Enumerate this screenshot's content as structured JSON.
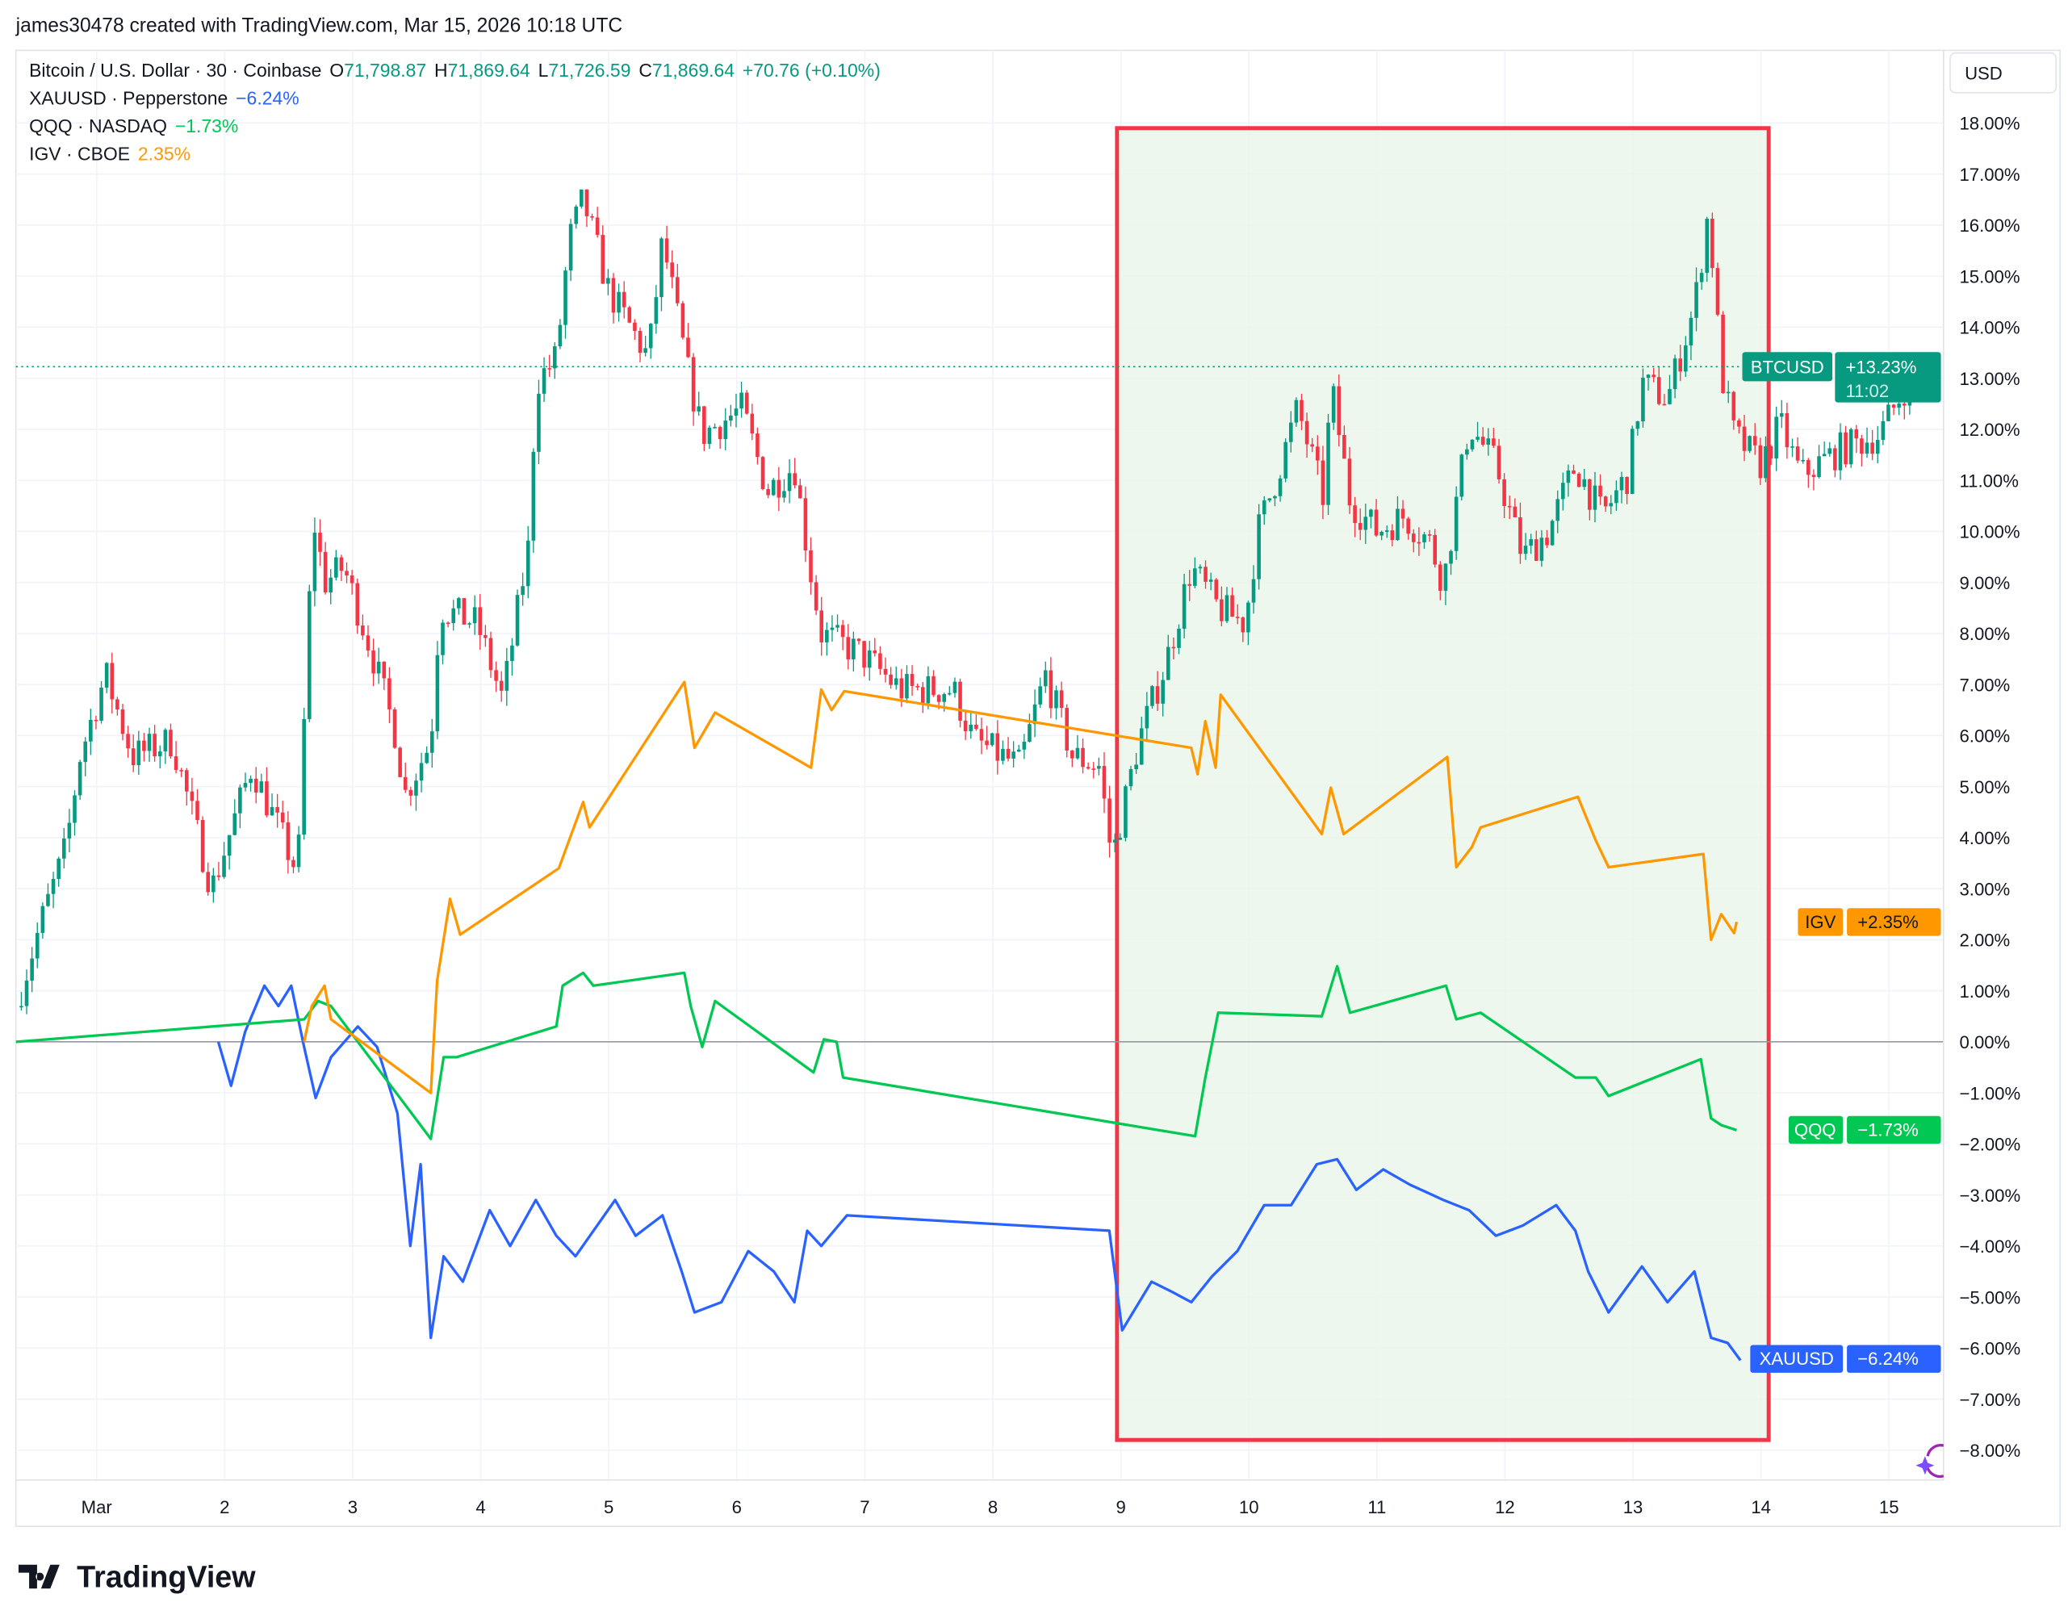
{
  "header": {
    "credit": "james30478 created with TradingView.com, Mar 15, 2026 10:18 UTC"
  },
  "legend": {
    "main": {
      "name": "Bitcoin / U.S. Dollar · 30 · Coinbase",
      "o_label": "O",
      "o": "71,798.87",
      "h_label": "H",
      "h": "71,869.64",
      "l_label": "L",
      "l": "71,726.59",
      "c_label": "C",
      "c": "71,869.64",
      "change": "+70.76 (+0.10%)"
    },
    "xauusd": {
      "name": "XAUUSD · Pepperstone",
      "change": "−6.24%"
    },
    "qqq": {
      "name": "QQQ · NASDAQ",
      "change": "−1.73%"
    },
    "igv": {
      "name": "IGV · CBOE",
      "change": "2.35%"
    }
  },
  "currency": "USD",
  "badges": {
    "btc": {
      "label": "BTCUSD",
      "value": "+13.23%",
      "countdown": "11:02"
    },
    "igv": {
      "label": "IGV",
      "value": "+2.35%"
    },
    "qqq": {
      "label": "QQQ",
      "value": "−1.73%"
    },
    "xau": {
      "label": "XAUUSD",
      "value": "−6.24%"
    }
  },
  "brand": {
    "logo_text": "TradingView"
  },
  "colors": {
    "up": "#089981",
    "down": "#f23645",
    "xauusd": "#2962ff",
    "qqq": "#00c853",
    "igv": "#ff9800",
    "highlight_border": "#f23645",
    "highlight_fill": "#e8f5e9"
  },
  "chart_data": {
    "type": "line",
    "ylim": [
      -8.8,
      18.8
    ],
    "y_ticks": [
      "18.00%",
      "17.00%",
      "16.00%",
      "15.00%",
      "14.00%",
      "13.00%",
      "12.00%",
      "11.00%",
      "10.00%",
      "9.00%",
      "8.00%",
      "7.00%",
      "6.00%",
      "5.00%",
      "4.00%",
      "3.00%",
      "2.00%",
      "1.00%",
      "0.00%",
      "−1.00%",
      "−2.00%",
      "−3.00%",
      "−4.00%",
      "−5.00%",
      "−6.00%",
      "−7.00%",
      "−8.00%"
    ],
    "x_ticks": [
      {
        "day": 1,
        "label": "Mar"
      },
      {
        "day": 2,
        "label": "2"
      },
      {
        "day": 3,
        "label": "3"
      },
      {
        "day": 4,
        "label": "4"
      },
      {
        "day": 5,
        "label": "5"
      },
      {
        "day": 6,
        "label": "6"
      },
      {
        "day": 7,
        "label": "7"
      },
      {
        "day": 8,
        "label": "8"
      },
      {
        "day": 9,
        "label": "9"
      },
      {
        "day": 10,
        "label": "10"
      },
      {
        "day": 11,
        "label": "11"
      },
      {
        "day": 12,
        "label": "12"
      },
      {
        "day": 13,
        "label": "13"
      },
      {
        "day": 14,
        "label": "14"
      },
      {
        "day": 15,
        "label": "15"
      }
    ],
    "grid": true,
    "highlight_box": {
      "x": [
        8.97,
        14.06
      ],
      "y": [
        -7.8,
        17.9
      ]
    },
    "series": [
      {
        "name": "BTCUSD",
        "style": "candles",
        "last": 13.23,
        "x": [
          0.37,
          0.56,
          0.76,
          0.87,
          1.07,
          1.28,
          1.59,
          1.9,
          2.21,
          2.57,
          2.65,
          2.69,
          2.78,
          2.93,
          3.14,
          3.35,
          3.4,
          3.61,
          3.68,
          3.97,
          4.17,
          4.38,
          4.43,
          4.59,
          4.69,
          4.8,
          5.0,
          5.31,
          5.42,
          5.62,
          5.73,
          6.04,
          6.24,
          6.45,
          6.57,
          6.66,
          6.97,
          7.28,
          7.69,
          7.85,
          8.21,
          8.41,
          8.62,
          8.83,
          8.93,
          9.14,
          9.35,
          9.55,
          9.76,
          9.97,
          10.07,
          10.22,
          10.38,
          10.59,
          10.64,
          10.79,
          11.0,
          11.21,
          11.41,
          11.52,
          11.72,
          11.93,
          12.14,
          12.34,
          12.55,
          12.76,
          12.96,
          13.07,
          13.27,
          13.48,
          13.59,
          13.69,
          13.79,
          14.0,
          14.15,
          14.31,
          14.62,
          14.93,
          15.14,
          15.34,
          15.39
        ],
        "y": [
          0.7,
          2.3,
          3.8,
          5.6,
          7.2,
          5.6,
          5.9,
          3.0,
          5.4,
          3.3,
          8.0,
          10.3,
          9.0,
          9.3,
          7.7,
          5.9,
          4.8,
          5.9,
          8.5,
          8.2,
          6.7,
          9.8,
          12.9,
          13.4,
          15.7,
          16.5,
          14.7,
          13.4,
          15.7,
          13.1,
          11.9,
          12.4,
          10.8,
          11.3,
          9.3,
          8.0,
          7.6,
          6.9,
          6.9,
          5.9,
          5.4,
          7.2,
          5.6,
          5.4,
          3.6,
          5.9,
          7.4,
          9.3,
          8.5,
          8.2,
          10.0,
          11.1,
          12.4,
          10.6,
          12.9,
          10.6,
          10.0,
          10.3,
          9.8,
          9.0,
          12.1,
          11.3,
          9.5,
          10.0,
          11.3,
          10.3,
          11.1,
          12.9,
          12.6,
          14.4,
          16.3,
          13.1,
          11.9,
          11.3,
          12.1,
          11.1,
          11.6,
          11.9,
          12.9,
          13.0,
          13.23
        ]
      },
      {
        "name": "XAUUSD",
        "style": "line",
        "last": -6.24,
        "x": [
          1.95,
          2.05,
          2.16,
          2.31,
          2.42,
          2.52,
          2.62,
          2.71,
          2.83,
          3.04,
          3.19,
          3.35,
          3.45,
          3.53,
          3.61,
          3.71,
          3.86,
          4.07,
          4.23,
          4.43,
          4.59,
          4.74,
          5.05,
          5.21,
          5.42,
          5.57,
          5.67,
          5.88,
          6.09,
          6.29,
          6.45,
          6.55,
          6.66,
          6.86,
          8.91,
          9.01,
          9.24,
          9.4,
          9.55,
          9.71,
          9.91,
          10.12,
          10.33,
          10.53,
          10.69,
          10.84,
          11.05,
          11.26,
          11.52,
          11.72,
          11.93,
          12.14,
          12.4,
          12.55,
          12.65,
          12.81,
          13.07,
          13.27,
          13.48,
          13.61,
          13.74,
          13.84
        ],
        "y": [
          0,
          -0.86,
          0.2,
          1.1,
          0.7,
          1.1,
          -0.1,
          -1.1,
          -0.3,
          0.3,
          -0.1,
          -1.4,
          -4.0,
          -2.4,
          -5.8,
          -4.2,
          -4.7,
          -3.3,
          -4.0,
          -3.1,
          -3.8,
          -4.2,
          -3.1,
          -3.8,
          -3.4,
          -4.5,
          -5.3,
          -5.1,
          -4.1,
          -4.5,
          -5.1,
          -3.7,
          -4.0,
          -3.4,
          -3.7,
          -5.65,
          -4.7,
          -4.9,
          -5.1,
          -4.6,
          -4.1,
          -3.2,
          -3.2,
          -2.4,
          -2.3,
          -2.9,
          -2.5,
          -2.8,
          -3.1,
          -3.3,
          -3.8,
          -3.6,
          -3.2,
          -3.7,
          -4.5,
          -5.3,
          -4.4,
          -5.1,
          -4.5,
          -5.8,
          -5.9,
          -6.24
        ]
      },
      {
        "name": "QQQ",
        "style": "line",
        "last": -1.73,
        "x": [
          0.37,
          2.62,
          2.73,
          2.83,
          3.61,
          3.71,
          3.81,
          4.59,
          4.64,
          4.8,
          4.88,
          5.59,
          5.64,
          5.73,
          5.83,
          6.6,
          6.68,
          6.78,
          6.83,
          9.58,
          9.66,
          9.76,
          10.57,
          10.69,
          10.79,
          11.54,
          11.62,
          11.81,
          12.55,
          12.71,
          12.81,
          13.53,
          13.61,
          13.69,
          13.81
        ],
        "y": [
          0,
          0.44,
          0.8,
          0.7,
          -1.9,
          -0.3,
          -0.3,
          0.3,
          1.1,
          1.35,
          1.1,
          1.35,
          0.7,
          -0.1,
          0.8,
          -0.6,
          0.05,
          0,
          -0.7,
          -1.85,
          -0.7,
          0.57,
          0.5,
          1.48,
          0.57,
          1.1,
          0.44,
          0.57,
          -0.7,
          -0.7,
          -1.06,
          -0.34,
          -1.5,
          -1.63,
          -1.73
        ]
      },
      {
        "name": "IGV",
        "style": "line",
        "last": 2.35,
        "x": [
          2.62,
          2.68,
          2.78,
          2.83,
          3.61,
          3.66,
          3.76,
          3.84,
          4.61,
          4.8,
          4.85,
          5.59,
          5.67,
          5.83,
          6.58,
          6.66,
          6.74,
          6.84,
          9.55,
          9.6,
          9.66,
          9.74,
          9.78,
          10.57,
          10.64,
          10.74,
          11.55,
          11.62,
          11.74,
          11.81,
          12.57,
          12.71,
          12.81,
          13.55,
          13.61,
          13.69,
          13.79,
          13.81
        ],
        "y": [
          0,
          0.7,
          1.1,
          0.44,
          -1.0,
          1.2,
          2.8,
          2.1,
          3.4,
          4.7,
          4.2,
          7.05,
          5.76,
          6.45,
          5.37,
          6.9,
          6.5,
          6.87,
          5.76,
          5.24,
          6.28,
          5.37,
          6.8,
          4.07,
          4.98,
          4.07,
          5.58,
          3.42,
          3.81,
          4.2,
          4.8,
          3.94,
          3.42,
          3.68,
          2.0,
          2.5,
          2.13,
          2.35
        ]
      }
    ]
  }
}
